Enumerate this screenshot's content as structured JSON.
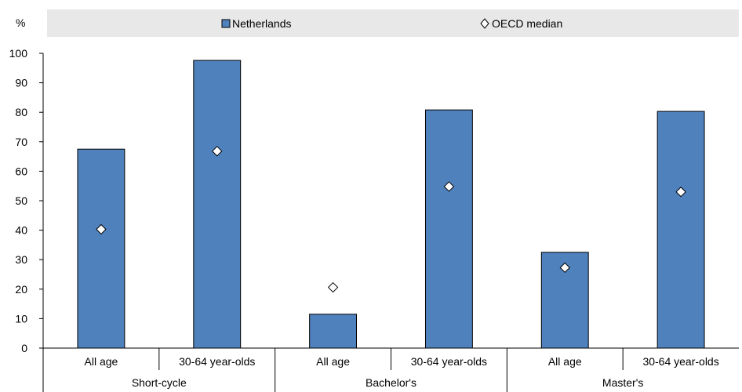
{
  "chart_data": {
    "type": "bar",
    "y_unit": "%",
    "ylim": [
      0,
      100
    ],
    "y_ticks": [
      0,
      10,
      20,
      30,
      40,
      50,
      60,
      70,
      80,
      90,
      100
    ],
    "grid": false,
    "legend": {
      "placement": "top",
      "entries": [
        {
          "label": "Netherlands",
          "marker": "bar"
        },
        {
          "label": "OECD median",
          "marker": "diamond"
        }
      ]
    },
    "groups": [
      {
        "label": "Short-cycle",
        "categories": [
          "All age",
          "30-64 year-olds"
        ]
      },
      {
        "label": "Bachelor's",
        "categories": [
          "All age",
          "30-64 year-olds"
        ]
      },
      {
        "label": "Master's",
        "categories": [
          "All age",
          "30-64 year-olds"
        ]
      }
    ],
    "series": [
      {
        "name": "Netherlands",
        "kind": "bar",
        "color": "#4f81bd",
        "values": [
          67.5,
          97.6,
          11.5,
          80.8,
          32.5,
          80.3
        ]
      },
      {
        "name": "OECD median",
        "kind": "marker",
        "color": "#ffffff",
        "values": [
          40.3,
          66.8,
          20.6,
          54.8,
          27.3,
          53.0
        ]
      }
    ]
  }
}
